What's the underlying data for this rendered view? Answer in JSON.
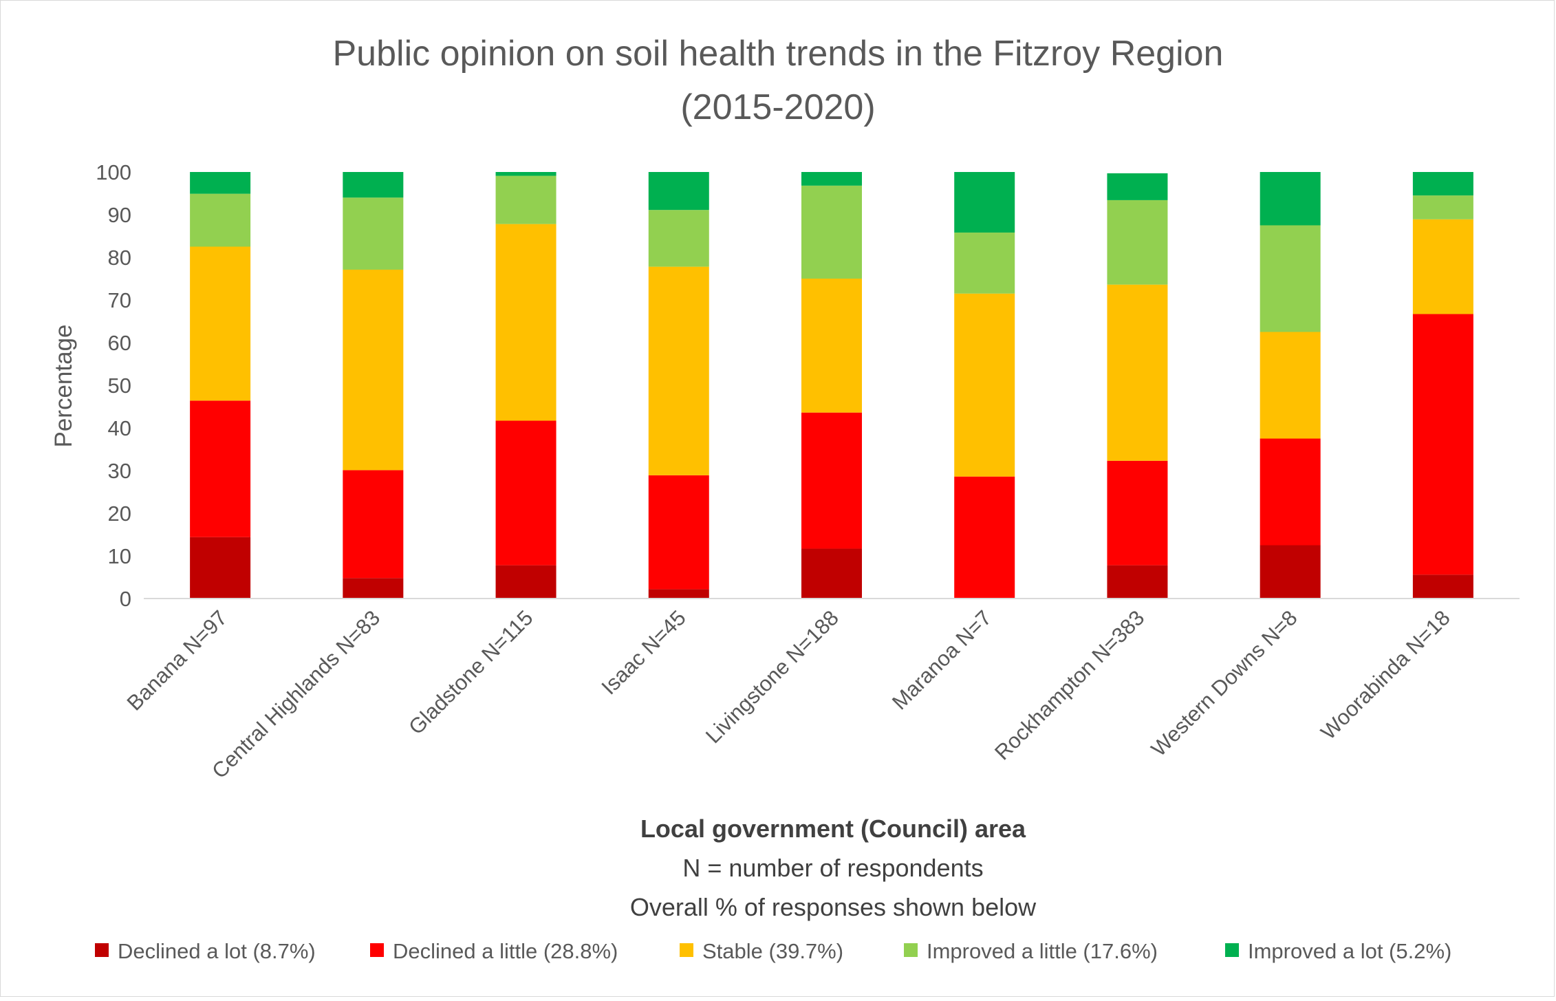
{
  "chart_data": {
    "type": "bar",
    "stacked": true,
    "title_lines": [
      "Public opinion on soil health trends in the Fitzroy Region",
      "(2015-2020)"
    ],
    "ylabel": "Percentage",
    "xlabel_lines": [
      "Local government (Council) area",
      "N = number of respondents",
      "Overall % of responses shown below"
    ],
    "ylim": [
      0,
      100
    ],
    "yticks": [
      "0",
      "10",
      "20",
      "30",
      "40",
      "50",
      "60",
      "70",
      "80",
      "90",
      "100"
    ],
    "grid": false,
    "legend_position": "bottom",
    "categories": [
      "Banana N=97",
      "Central Highlands N=83",
      "Gladstone N=115",
      "Isaac N=45",
      "Livingstone N=188",
      "Maranoa N=7",
      "Rockhampton N=383",
      "Western Downs N=8",
      "Woorabinda N=18"
    ],
    "series": [
      {
        "name": "Declined a lot (8.7%)",
        "color": "#c00000",
        "values": [
          14.4,
          4.8,
          7.8,
          2.2,
          11.7,
          0.0,
          7.8,
          12.5,
          5.6
        ]
      },
      {
        "name": "Declined a little (28.8%)",
        "color": "#ff0000",
        "values": [
          32.0,
          25.3,
          33.9,
          26.7,
          31.9,
          28.6,
          24.5,
          25.0,
          61.1
        ]
      },
      {
        "name": "Stable (39.7%)",
        "color": "#ffc000",
        "values": [
          36.1,
          47.0,
          46.1,
          48.9,
          31.4,
          42.9,
          41.3,
          25.0,
          22.2
        ]
      },
      {
        "name": "Improved a little (17.6%)",
        "color": "#92d050",
        "values": [
          12.4,
          16.9,
          11.3,
          13.3,
          21.8,
          14.3,
          19.8,
          25.0,
          5.6
        ]
      },
      {
        "name": "Improved a lot (5.2%)",
        "color": "#00b050",
        "values": [
          5.1,
          6.0,
          0.9,
          8.9,
          3.2,
          14.2,
          6.3,
          12.5,
          5.5
        ]
      }
    ]
  }
}
